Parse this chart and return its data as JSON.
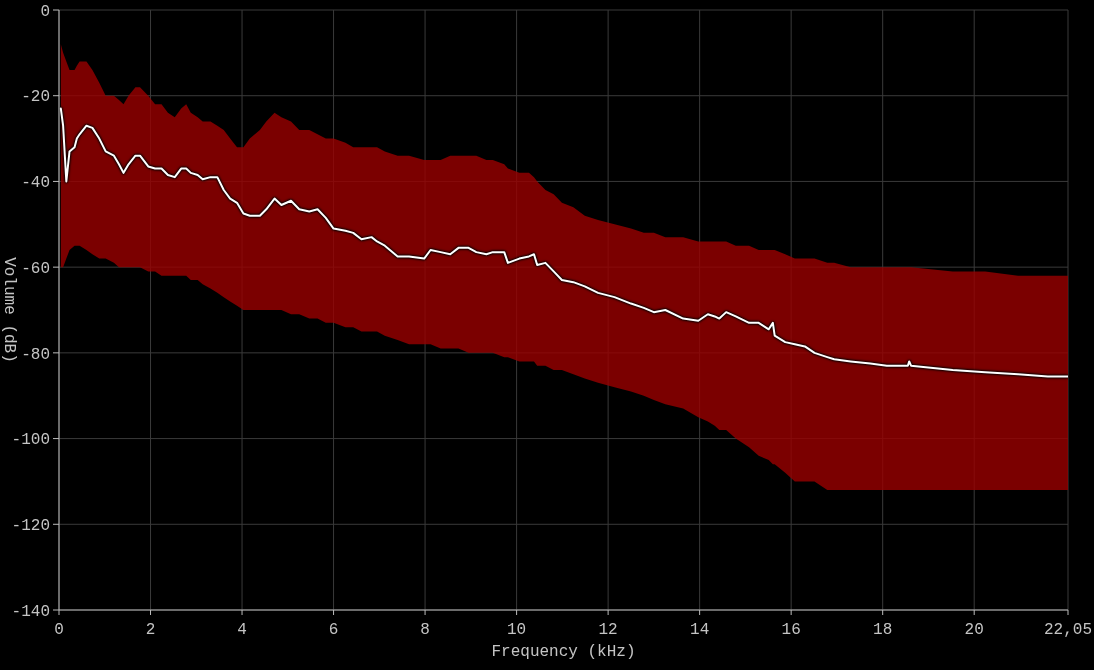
{
  "chart_data": {
    "type": "line",
    "xlabel": "Frequency (kHz)",
    "ylabel": "Volume (dB)",
    "xlim": [
      0,
      22.05
    ],
    "ylim": [
      -140,
      0
    ],
    "xticks": [
      0,
      2,
      4,
      6,
      8,
      10,
      12,
      14,
      16,
      18,
      20,
      {
        "value": 22.05,
        "label": "22,05"
      }
    ],
    "yticks": [
      0,
      -20,
      -40,
      -60,
      -80,
      -100,
      -120,
      -140
    ],
    "grid": true,
    "marker": "none",
    "line_style": "solid",
    "x": [
      0.04,
      0.09,
      0.16,
      0.23,
      0.34,
      0.39,
      0.45,
      0.6,
      0.73,
      0.88,
      1.02,
      1.2,
      1.31,
      1.41,
      1.52,
      1.67,
      1.77,
      1.95,
      2.1,
      2.24,
      2.38,
      2.53,
      2.67,
      2.78,
      2.88,
      3.03,
      3.14,
      3.31,
      3.46,
      3.6,
      3.74,
      3.89,
      4.03,
      4.17,
      4.39,
      4.53,
      4.71,
      4.86,
      5.07,
      5.25,
      5.47,
      5.65,
      5.83,
      6.0,
      6.26,
      6.43,
      6.61,
      6.83,
      6.95,
      7.12,
      7.4,
      7.65,
      7.98,
      8.12,
      8.34,
      8.55,
      8.73,
      8.95,
      9.12,
      9.34,
      9.48,
      9.73,
      9.81,
      10.06,
      10.27,
      10.38,
      10.45,
      10.63,
      10.81,
      10.99,
      11.24,
      11.49,
      11.78,
      12.14,
      12.5,
      12.78,
      13.0,
      13.25,
      13.64,
      13.97,
      14.18,
      14.33,
      14.43,
      14.58,
      14.79,
      15.08,
      15.29,
      15.51,
      15.6,
      15.64,
      15.87,
      16.08,
      16.3,
      16.51,
      16.79,
      16.94,
      17.3,
      17.73,
      18.09,
      18.55,
      18.58,
      18.62,
      19.53,
      20.24,
      20.96,
      21.61,
      22.05
    ],
    "series": [
      {
        "color": "#ffffff",
        "values": [
          -23,
          -27,
          -40,
          -33,
          -32,
          -30,
          -29,
          -27,
          -27.5,
          -30,
          -33,
          -34,
          -36,
          -38,
          -36,
          -34,
          -34,
          -36.5,
          -37,
          -37,
          -38.5,
          -39,
          -37,
          -37,
          -38,
          -38.5,
          -39.5,
          -39,
          -39,
          -42,
          -44,
          -45,
          -47.5,
          -48,
          -48,
          -46.5,
          -44,
          -45.5,
          -44.5,
          -46.5,
          -47,
          -46.5,
          -48.5,
          -51,
          -51.5,
          -52,
          -53.5,
          -53,
          -54,
          -55,
          -57.5,
          -57.5,
          -58,
          -56,
          -56.5,
          -57,
          -55.5,
          -55.5,
          -56.5,
          -57,
          -56.5,
          -56.5,
          -59,
          -58,
          -57.5,
          -57,
          -59.5,
          -59,
          -61,
          -63,
          -63.5,
          -64.5,
          -66,
          -67,
          -68.5,
          -69.5,
          -70.5,
          -70,
          -72,
          -72.5,
          -71,
          -71.5,
          -72,
          -70.5,
          -71.5,
          -73,
          -73,
          -74.5,
          -73,
          -76,
          -77.5,
          -78,
          -78.5,
          -80,
          -81,
          -81.5,
          -82,
          -82.5,
          -83,
          -83,
          -82,
          -83,
          -84,
          -84.5,
          -85,
          -85.5,
          -85.5
        ],
        "lower": [
          -60,
          -60,
          -58,
          -56,
          -55,
          -55,
          -55,
          -56,
          -57,
          -58,
          -58,
          -59,
          -60,
          -60,
          -60,
          -60,
          -60,
          -61,
          -61,
          -62,
          -62,
          -62,
          -62,
          -62,
          -63,
          -63,
          -64,
          -65,
          -66,
          -67,
          -68,
          -69,
          -70,
          -70,
          -70,
          -70,
          -70,
          -70,
          -71,
          -71,
          -72,
          -72,
          -73,
          -73,
          -74,
          -74,
          -75,
          -75,
          -75,
          -76,
          -77,
          -78,
          -78,
          -78,
          -79,
          -79,
          -79,
          -80,
          -80,
          -80,
          -80,
          -81,
          -81,
          -82,
          -82,
          -82,
          -83,
          -83,
          -84,
          -84,
          -85,
          -86,
          -87,
          -88,
          -89,
          -90,
          -91,
          -92,
          -93,
          -95,
          -96,
          -97,
          -98,
          -98,
          -100,
          -102,
          -104,
          -105,
          -106,
          -106,
          -108,
          -110,
          -110,
          -110,
          -112,
          -112,
          -112,
          -112,
          -112,
          -112,
          -112,
          -112,
          -112,
          -112,
          -112,
          -112,
          -112
        ],
        "upper": [
          -8,
          -10,
          -12,
          -14,
          -14,
          -13,
          -12,
          -12,
          -14,
          -17,
          -20,
          -20,
          -21,
          -22,
          -20,
          -18,
          -18,
          -20,
          -22,
          -22,
          -24,
          -25,
          -23,
          -22,
          -24,
          -25,
          -26,
          -26,
          -27,
          -28,
          -30,
          -32,
          -32,
          -30,
          -28,
          -26,
          -24,
          -25,
          -26,
          -28,
          -28,
          -29,
          -30,
          -30,
          -31,
          -32,
          -32,
          -32,
          -32,
          -33,
          -34,
          -34,
          -35,
          -35,
          -35,
          -34,
          -34,
          -34,
          -34,
          -35,
          -35,
          -36,
          -37,
          -38,
          -38,
          -39,
          -40,
          -42,
          -43,
          -45,
          -46,
          -48,
          -49,
          -50,
          -51,
          -52,
          -52,
          -53,
          -53,
          -54,
          -54,
          -54,
          -54,
          -54,
          -55,
          -55,
          -56,
          -56,
          -56,
          -56,
          -57,
          -58,
          -58,
          -58,
          -59,
          -59,
          -60,
          -60,
          -60,
          -60,
          -60,
          -60,
          -61,
          -61,
          -62,
          -62,
          -62
        ]
      }
    ]
  }
}
